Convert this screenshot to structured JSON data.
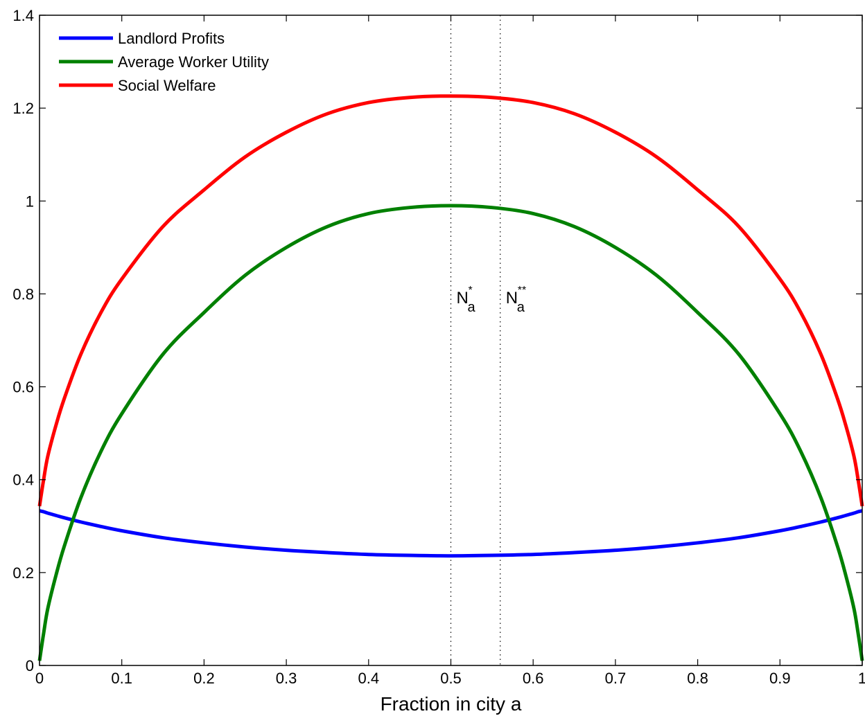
{
  "chart_data": {
    "type": "line",
    "xlabel": "Fraction in city a",
    "ylabel": "",
    "title": "",
    "xlim": [
      0,
      1
    ],
    "ylim": [
      0,
      1.4
    ],
    "xticks": [
      "0",
      "0.1",
      "0.2",
      "0.3",
      "0.4",
      "0.5",
      "0.6",
      "0.7",
      "0.8",
      "0.9",
      "1"
    ],
    "yticks": [
      "0",
      "0.2",
      "0.4",
      "0.6",
      "0.8",
      "1",
      "1.2",
      "1.4"
    ],
    "grid": false,
    "legend_position": "top-left",
    "x": [
      0,
      0.0025,
      0.005,
      0.01,
      0.02,
      0.03,
      0.05,
      0.075,
      0.1,
      0.15,
      0.2,
      0.25,
      0.3,
      0.35,
      0.4,
      0.45,
      0.5,
      0.55,
      0.6,
      0.65,
      0.7,
      0.75,
      0.8,
      0.85,
      0.9,
      0.925,
      0.95,
      0.97,
      0.98,
      0.99,
      0.995,
      0.9975,
      1
    ],
    "series": [
      {
        "name": "Landlord Profits",
        "color": "#0000ff",
        "values": [
          0.333,
          0.332,
          0.331,
          0.328,
          0.323,
          0.318,
          0.309,
          0.299,
          0.29,
          0.275,
          0.264,
          0.255,
          0.248,
          0.243,
          0.239,
          0.237,
          0.236,
          0.237,
          0.239,
          0.243,
          0.248,
          0.255,
          0.264,
          0.275,
          0.29,
          0.299,
          0.309,
          0.318,
          0.323,
          0.328,
          0.331,
          0.332,
          0.333
        ]
      },
      {
        "name": "Average Worker Utility",
        "color": "#008000",
        "values": [
          0.01,
          0.04,
          0.069,
          0.122,
          0.194,
          0.256,
          0.36,
          0.462,
          0.542,
          0.67,
          0.76,
          0.84,
          0.9,
          0.945,
          0.973,
          0.986,
          0.99,
          0.986,
          0.973,
          0.945,
          0.9,
          0.84,
          0.76,
          0.67,
          0.542,
          0.462,
          0.36,
          0.256,
          0.194,
          0.122,
          0.069,
          0.04,
          0.01
        ]
      },
      {
        "name": "Social Welfare",
        "color": "#ff0000",
        "values": [
          0.343,
          0.372,
          0.4,
          0.45,
          0.517,
          0.574,
          0.669,
          0.761,
          0.832,
          0.945,
          1.024,
          1.095,
          1.148,
          1.188,
          1.212,
          1.223,
          1.226,
          1.223,
          1.212,
          1.188,
          1.148,
          1.095,
          1.024,
          0.945,
          0.832,
          0.761,
          0.669,
          0.574,
          0.517,
          0.45,
          0.4,
          0.372,
          0.343
        ]
      }
    ],
    "vlines": [
      {
        "x": 0.5,
        "label": "N",
        "sub": "a",
        "sup": "*"
      },
      {
        "x": 0.56,
        "label": "N",
        "sub": "a",
        "sup": "**"
      }
    ],
    "annotation_y": 0.78
  }
}
